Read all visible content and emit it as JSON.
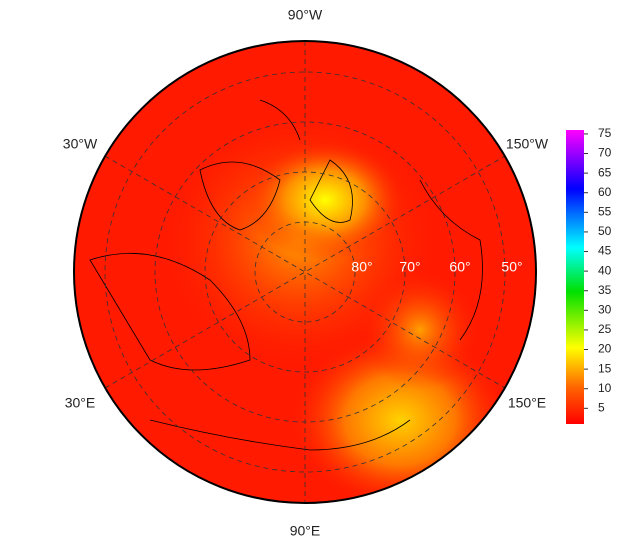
{
  "map": {
    "longitude_labels": [
      "90°W",
      "30°W",
      "150°W",
      "30°E",
      "150°E",
      "90°E"
    ],
    "latitude_labels": [
      "80°",
      "70°",
      "60°",
      "50°"
    ]
  },
  "colorbar": {
    "range": [
      1,
      76
    ],
    "ticks": [
      5,
      10,
      15,
      20,
      25,
      30,
      35,
      40,
      45,
      50,
      55,
      60,
      65,
      70,
      75
    ]
  }
}
